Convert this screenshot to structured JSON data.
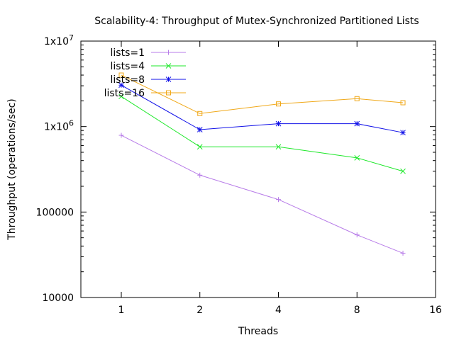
{
  "chart_data": {
    "type": "line",
    "title": "Scalability-4: Throughput of Mutex-Synchronized Partitioned Lists",
    "xlabel": "Threads",
    "ylabel": "Throughput (operations/sec)",
    "x_scale": "log2",
    "y_scale": "log10",
    "xlim": [
      0.7,
      16
    ],
    "ylim": [
      10000,
      10000000
    ],
    "x_ticks": [
      {
        "value": 1,
        "label": "1"
      },
      {
        "value": 2,
        "label": "2"
      },
      {
        "value": 4,
        "label": "4"
      },
      {
        "value": 8,
        "label": "8"
      },
      {
        "value": 16,
        "label": "16"
      }
    ],
    "y_ticks": [
      {
        "value": 10000,
        "base": "10000",
        "exp": ""
      },
      {
        "value": 100000,
        "base": "100000",
        "exp": ""
      },
      {
        "value": 1000000,
        "base": "1x10",
        "exp": "6"
      },
      {
        "value": 10000000,
        "base": "1x10",
        "exp": "7"
      }
    ],
    "grid": false,
    "legend_position": "top-left",
    "x": [
      1,
      2,
      4,
      8,
      12
    ],
    "series": [
      {
        "name": "lists=1",
        "color": "#b77be8",
        "marker": "plus",
        "values": [
          790000,
          270000,
          140000,
          54000,
          33000
        ]
      },
      {
        "name": "lists=4",
        "color": "#1ee82a",
        "marker": "cross",
        "values": [
          2250000,
          580000,
          580000,
          430000,
          300000
        ]
      },
      {
        "name": "lists=8",
        "color": "#1010e8",
        "marker": "star",
        "values": [
          3050000,
          920000,
          1080000,
          1080000,
          850000
        ]
      },
      {
        "name": "lists=16",
        "color": "#f0a818",
        "marker": "square",
        "values": [
          4000000,
          1420000,
          1840000,
          2120000,
          1900000
        ]
      }
    ]
  }
}
